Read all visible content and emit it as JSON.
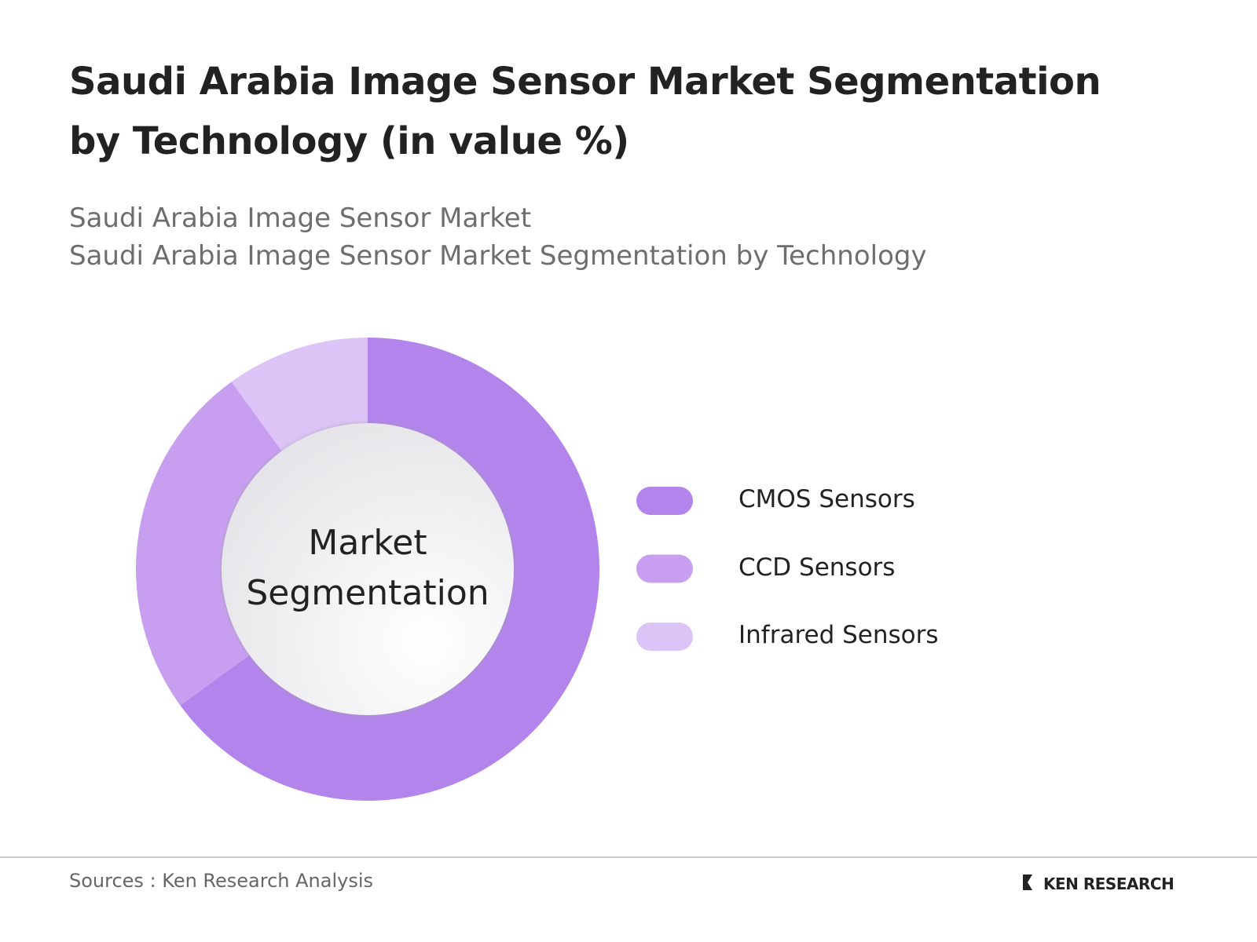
{
  "chart_data": {
    "type": "pie",
    "title": "Saudi Arabia Image Sensor Market Segmentation by Technology (in value %)",
    "subtitle": [
      "Saudi Arabia Image Sensor Market",
      "Saudi Arabia Image Sensor Market Segmentation by Technology"
    ],
    "center_label": "Market Segmentation",
    "categories": [
      "CMOS Sensors",
      "CCD Sensors",
      "Infrared Sensors"
    ],
    "values": [
      65,
      25,
      10
    ],
    "colors": [
      "#b385ec",
      "#c89ff0",
      "#dcc4f7"
    ]
  },
  "footer": {
    "source": "Sources : Ken Research Analysis",
    "brand": "KEN RESEARCH"
  }
}
